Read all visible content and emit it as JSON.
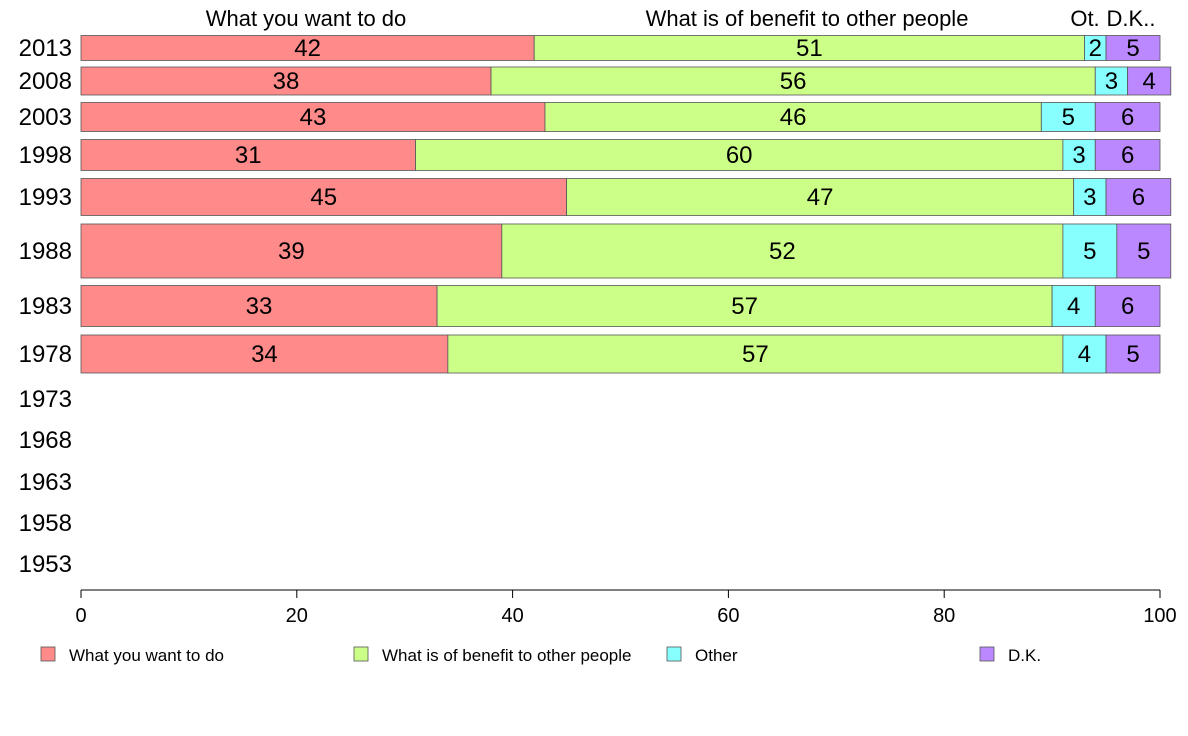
{
  "chart_data": {
    "type": "bar",
    "orientation": "horizontal",
    "stacked": true,
    "categories": [
      "2013",
      "2008",
      "2003",
      "1998",
      "1993",
      "1988",
      "1983",
      "1978",
      "1973",
      "1968",
      "1963",
      "1958",
      "1953"
    ],
    "series": [
      {
        "name": "What you want to do",
        "color": "#ff8a8a",
        "values": [
          42,
          38,
          43,
          31,
          45,
          39,
          33,
          34,
          null,
          null,
          null,
          null,
          null
        ]
      },
      {
        "name": "What is of benefit to other people",
        "color": "#ccff88",
        "values": [
          51,
          56,
          46,
          60,
          47,
          52,
          57,
          57,
          null,
          null,
          null,
          null,
          null
        ]
      },
      {
        "name": "Other",
        "color": "#88ffff",
        "values": [
          2,
          3,
          5,
          3,
          3,
          5,
          4,
          4,
          null,
          null,
          null,
          null,
          null
        ]
      },
      {
        "name": "D.K.",
        "color": "#bb88ff",
        "values": [
          5,
          4,
          6,
          6,
          6,
          5,
          6,
          5,
          null,
          null,
          null,
          null,
          null
        ]
      }
    ],
    "column_headers": [
      "What you want to do",
      "What is of benefit to other people",
      "Ot.",
      "D.K.."
    ],
    "xlim": [
      0,
      100
    ],
    "xticks": [
      0,
      20,
      40,
      60,
      80,
      100
    ],
    "grid": false,
    "legend_position": "bottom"
  }
}
